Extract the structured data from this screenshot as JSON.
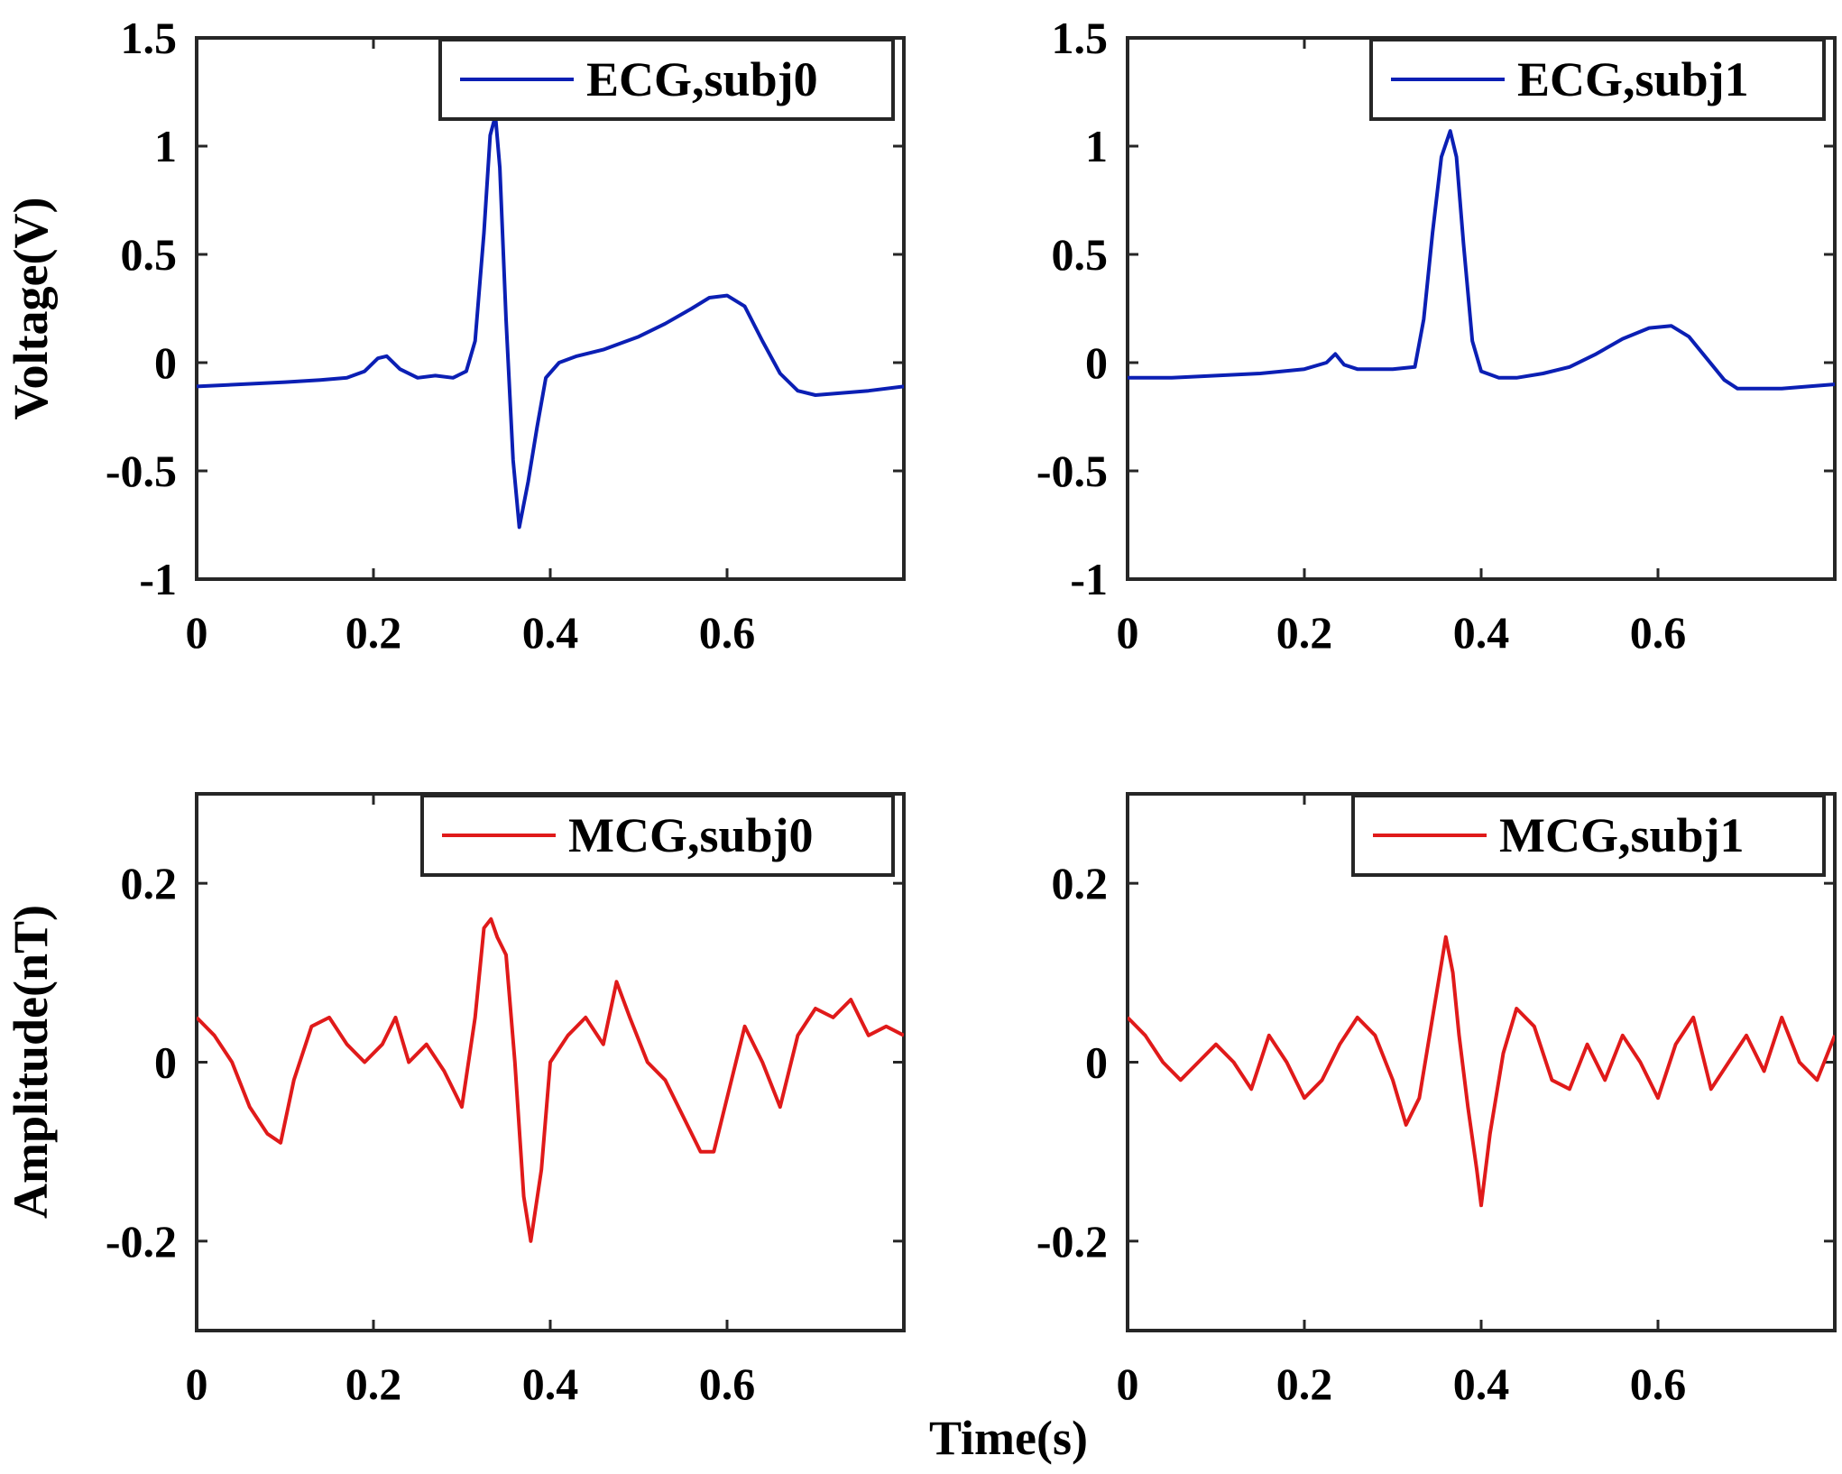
{
  "chart_data": [
    {
      "type": "line",
      "name": "ECG subj0 panel",
      "xlim": [
        0,
        0.8
      ],
      "ylim": [
        -1,
        1.5
      ],
      "xticks": [
        "0",
        "0.2",
        "0.4",
        "0.6"
      ],
      "yticks": [
        "1.5",
        "1",
        "0.5",
        "0",
        "-0.5",
        "-1"
      ],
      "ylabel": "Voltage(V)",
      "xlabel": "",
      "legend": "ECG,subj0",
      "legend_position": "top-right",
      "color": "#0b1fb4",
      "x": [
        0,
        0.05,
        0.1,
        0.14,
        0.17,
        0.19,
        0.205,
        0.215,
        0.23,
        0.25,
        0.27,
        0.29,
        0.305,
        0.315,
        0.325,
        0.332,
        0.338,
        0.343,
        0.35,
        0.358,
        0.365,
        0.375,
        0.385,
        0.395,
        0.41,
        0.43,
        0.46,
        0.5,
        0.53,
        0.56,
        0.58,
        0.6,
        0.62,
        0.64,
        0.66,
        0.68,
        0.7,
        0.73,
        0.76,
        0.8
      ],
      "y": [
        -0.11,
        -0.1,
        -0.09,
        -0.08,
        -0.07,
        -0.04,
        0.02,
        0.03,
        -0.03,
        -0.07,
        -0.06,
        -0.07,
        -0.04,
        0.1,
        0.6,
        1.05,
        1.14,
        0.9,
        0.2,
        -0.45,
        -0.76,
        -0.55,
        -0.3,
        -0.07,
        0.0,
        0.03,
        0.06,
        0.12,
        0.18,
        0.25,
        0.3,
        0.31,
        0.26,
        0.1,
        -0.05,
        -0.13,
        -0.15,
        -0.14,
        -0.13,
        -0.11
      ]
    },
    {
      "type": "line",
      "name": "ECG subj1 panel",
      "xlim": [
        0,
        0.8
      ],
      "ylim": [
        -1,
        1.5
      ],
      "xticks": [
        "0",
        "0.2",
        "0.4",
        "0.6"
      ],
      "yticks": [
        "1.5",
        "1",
        "0.5",
        "0",
        "-0.5",
        "-1"
      ],
      "ylabel": "",
      "xlabel": "",
      "legend": "ECG,subj1",
      "legend_position": "top-right",
      "color": "#0b1fb4",
      "x": [
        0,
        0.05,
        0.1,
        0.15,
        0.2,
        0.225,
        0.235,
        0.245,
        0.26,
        0.3,
        0.325,
        0.335,
        0.345,
        0.355,
        0.365,
        0.372,
        0.38,
        0.39,
        0.4,
        0.42,
        0.44,
        0.47,
        0.5,
        0.53,
        0.56,
        0.59,
        0.615,
        0.635,
        0.655,
        0.675,
        0.69,
        0.71,
        0.74,
        0.77,
        0.8
      ],
      "y": [
        -0.07,
        -0.07,
        -0.06,
        -0.05,
        -0.03,
        0.0,
        0.04,
        -0.01,
        -0.03,
        -0.03,
        -0.02,
        0.2,
        0.6,
        0.95,
        1.07,
        0.95,
        0.55,
        0.1,
        -0.04,
        -0.07,
        -0.07,
        -0.05,
        -0.02,
        0.04,
        0.11,
        0.16,
        0.17,
        0.12,
        0.02,
        -0.08,
        -0.12,
        -0.12,
        -0.12,
        -0.11,
        -0.1
      ]
    },
    {
      "type": "line",
      "name": "MCG subj0 panel",
      "xlim": [
        0,
        0.8
      ],
      "ylim": [
        -0.3,
        0.3
      ],
      "xticks": [
        "0",
        "0.2",
        "0.4",
        "0.6"
      ],
      "yticks": [
        "0.2",
        "0",
        "-0.2"
      ],
      "ylabel": "Amplitude(nT)",
      "xlabel": "",
      "legend": "MCG,subj0",
      "legend_position": "top-right",
      "color": "#e01a1a",
      "x": [
        0,
        0.02,
        0.04,
        0.06,
        0.08,
        0.095,
        0.11,
        0.13,
        0.15,
        0.17,
        0.19,
        0.21,
        0.225,
        0.24,
        0.26,
        0.28,
        0.3,
        0.315,
        0.325,
        0.333,
        0.34,
        0.35,
        0.36,
        0.37,
        0.378,
        0.39,
        0.4,
        0.42,
        0.44,
        0.46,
        0.475,
        0.49,
        0.51,
        0.53,
        0.55,
        0.57,
        0.585,
        0.6,
        0.62,
        0.64,
        0.66,
        0.68,
        0.7,
        0.72,
        0.74,
        0.76,
        0.78,
        0.8
      ],
      "y": [
        0.05,
        0.03,
        0.0,
        -0.05,
        -0.08,
        -0.09,
        -0.02,
        0.04,
        0.05,
        0.02,
        0.0,
        0.02,
        0.05,
        0.0,
        0.02,
        -0.01,
        -0.05,
        0.05,
        0.15,
        0.16,
        0.14,
        0.12,
        0.0,
        -0.15,
        -0.2,
        -0.12,
        0.0,
        0.03,
        0.05,
        0.02,
        0.09,
        0.05,
        0.0,
        -0.02,
        -0.06,
        -0.1,
        -0.1,
        -0.04,
        0.04,
        0.0,
        -0.05,
        0.03,
        0.06,
        0.05,
        0.07,
        0.03,
        0.04,
        0.03
      ]
    },
    {
      "type": "line",
      "name": "MCG subj1 panel",
      "xlim": [
        0,
        0.8
      ],
      "ylim": [
        -0.3,
        0.3
      ],
      "xticks": [
        "0",
        "0.2",
        "0.4",
        "0.6"
      ],
      "yticks": [
        "0.2",
        "0",
        "-0.2"
      ],
      "ylabel": "",
      "xlabel": "Time(s)",
      "legend": "MCG,subj1",
      "legend_position": "top-right",
      "color": "#e01a1a",
      "x": [
        0,
        0.02,
        0.04,
        0.06,
        0.08,
        0.1,
        0.12,
        0.14,
        0.16,
        0.18,
        0.2,
        0.22,
        0.24,
        0.26,
        0.28,
        0.3,
        0.315,
        0.33,
        0.345,
        0.36,
        0.368,
        0.375,
        0.385,
        0.395,
        0.4,
        0.41,
        0.425,
        0.44,
        0.46,
        0.48,
        0.5,
        0.52,
        0.54,
        0.56,
        0.58,
        0.6,
        0.62,
        0.64,
        0.66,
        0.68,
        0.7,
        0.72,
        0.74,
        0.76,
        0.78,
        0.8
      ],
      "y": [
        0.05,
        0.03,
        0.0,
        -0.02,
        0.0,
        0.02,
        0.0,
        -0.03,
        0.03,
        0.0,
        -0.04,
        -0.02,
        0.02,
        0.05,
        0.03,
        -0.02,
        -0.07,
        -0.04,
        0.05,
        0.14,
        0.1,
        0.03,
        -0.05,
        -0.12,
        -0.16,
        -0.08,
        0.01,
        0.06,
        0.04,
        -0.02,
        -0.03,
        0.02,
        -0.02,
        0.03,
        0.0,
        -0.04,
        0.02,
        0.05,
        -0.03,
        0.0,
        0.03,
        -0.01,
        0.05,
        0.0,
        -0.02,
        0.03
      ]
    }
  ]
}
